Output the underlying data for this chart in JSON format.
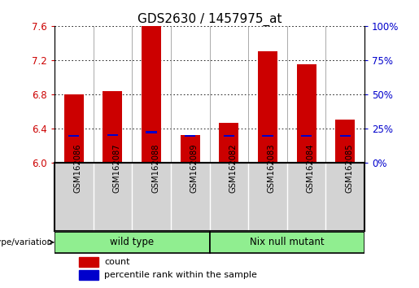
{
  "title": "GDS2630 / 1457975_at",
  "samples": [
    "GSM162086",
    "GSM162087",
    "GSM162088",
    "GSM162089",
    "GSM162082",
    "GSM162083",
    "GSM162084",
    "GSM162085"
  ],
  "count_values": [
    6.8,
    6.84,
    7.6,
    6.32,
    6.47,
    7.3,
    7.15,
    6.5
  ],
  "percentile_values": [
    6.305,
    6.315,
    6.345,
    6.305,
    6.305,
    6.305,
    6.305,
    6.305
  ],
  "y_min": 6.0,
  "y_max": 7.6,
  "y_ticks": [
    6.0,
    6.4,
    6.8,
    7.2,
    7.6
  ],
  "y2_ticks": [
    0,
    25,
    50,
    75,
    100
  ],
  "y2_tick_positions": [
    6.0,
    6.4,
    6.8,
    7.2,
    7.6
  ],
  "bar_color": "#CC0000",
  "percentile_color": "#0000CC",
  "bar_width": 0.5,
  "group1_label": "wild type",
  "group2_label": "Nix null mutant",
  "group1_indices": [
    0,
    1,
    2,
    3
  ],
  "group2_indices": [
    4,
    5,
    6,
    7
  ],
  "group_color": "#90EE90",
  "xlabel_genotype": "genotype/variation",
  "legend_count": "count",
  "legend_percentile": "percentile rank within the sample",
  "title_fontsize": 11,
  "axis_label_color_red": "#CC0000",
  "axis_label_color_blue": "#0000CC",
  "sample_bg_color": "#D3D3D3",
  "fig_width": 5.15,
  "fig_height": 3.54
}
